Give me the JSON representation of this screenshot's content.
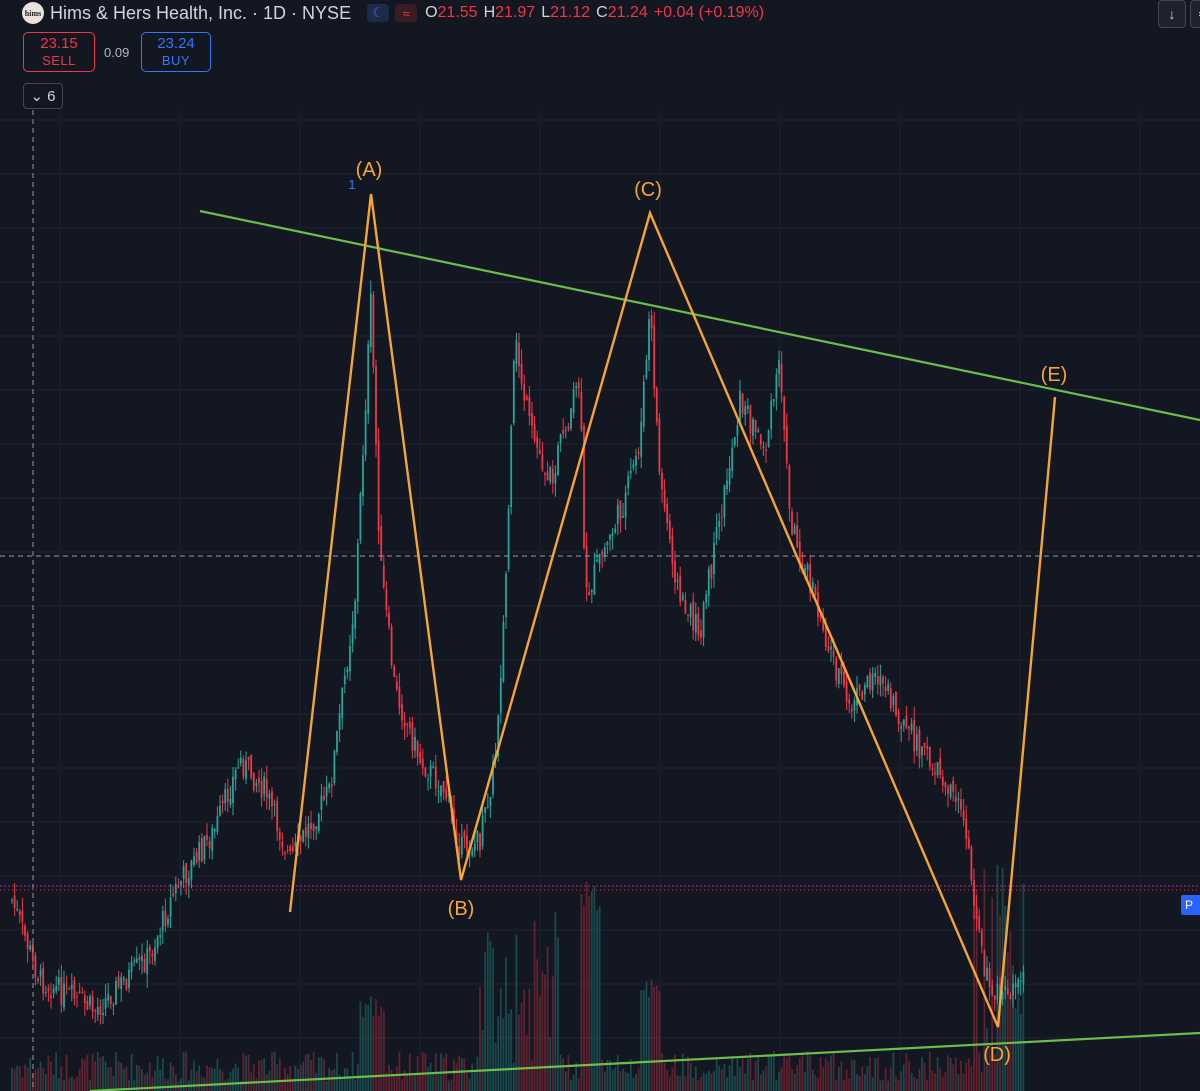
{
  "header": {
    "logo_text": "hims",
    "title": "Hims & Hers Health, Inc. · 1D · NYSE",
    "moon_icon": "moon-icon",
    "wave_icon": "approx-wave-icon",
    "ohlc": [
      {
        "key": "O",
        "value": "21.55"
      },
      {
        "key": "H",
        "value": "21.97"
      },
      {
        "key": "L",
        "value": "21.12"
      },
      {
        "key": "C",
        "value": "21.24"
      }
    ],
    "change": "+0.04 (+0.19%)"
  },
  "trade": {
    "sell_price": "23.15",
    "sell_label": "SELL",
    "spread": "0.09",
    "buy_price": "23.24",
    "buy_label": "BUY"
  },
  "indicators": {
    "count": "6"
  },
  "toolbar": {
    "scroll_down_icon": "arrow-down-icon"
  },
  "price_tag": "P",
  "colors": {
    "background": "#131722",
    "up": "#26a69a",
    "down": "#f23645",
    "wave": "#f7a531",
    "trendline": "#6abf4b"
  },
  "chart_data": {
    "type": "candlestick",
    "title": "Hims & Hers Health, Inc. · 1D · NYSE",
    "xlabel": "",
    "ylabel": "",
    "grid": true,
    "wave_labels": [
      "(A)",
      "(B)",
      "(C)",
      "(D)",
      "(E)"
    ],
    "marker_label": "1",
    "pattern": "contracting triangle (A)-(B)-(C)-(D)-(E) between two trendlines",
    "ohlc_last": {
      "open": 21.55,
      "high": 21.97,
      "low": 21.12,
      "close": 21.24,
      "change": 0.04,
      "change_pct": 0.19
    }
  }
}
